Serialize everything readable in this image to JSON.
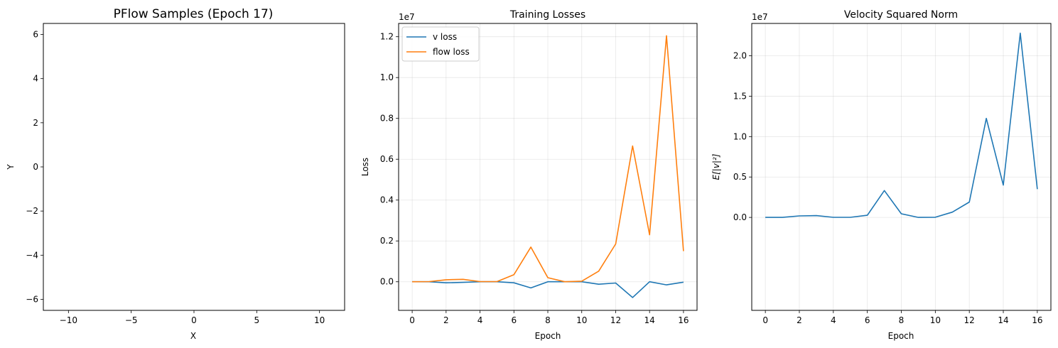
{
  "chart_data": [
    {
      "type": "scatter",
      "title": "PFlow Samples (Epoch 17)",
      "xlabel": "X",
      "ylabel": "Y",
      "xlim": [
        -12,
        12
      ],
      "ylim": [
        -6.5,
        6.5
      ],
      "xticks": [
        -10,
        -5,
        0,
        5,
        10
      ],
      "xtick_labels": [
        "−10",
        "−5",
        "0",
        "5",
        "10"
      ],
      "yticks": [
        -6,
        -4,
        -2,
        0,
        2,
        4,
        6
      ],
      "ytick_labels": [
        "−6",
        "−4",
        "−2",
        "0",
        "2",
        "4",
        "6"
      ],
      "grid": false,
      "series": []
    },
    {
      "type": "line",
      "title": "Training Losses",
      "xlabel": "Epoch",
      "ylabel": "Loss",
      "offset_label": "1e7",
      "xlim": [
        -0.8,
        16.8
      ],
      "ylim": [
        -0.14,
        1.265
      ],
      "xticks": [
        0,
        2,
        4,
        6,
        8,
        10,
        12,
        14,
        16
      ],
      "xtick_labels": [
        "0",
        "2",
        "4",
        "6",
        "8",
        "10",
        "12",
        "14",
        "16"
      ],
      "yticks": [
        0.0,
        0.2,
        0.4,
        0.6,
        0.8,
        1.0,
        1.2
      ],
      "ytick_labels": [
        "0.0",
        "0.2",
        "0.4",
        "0.6",
        "0.8",
        "1.0",
        "1.2"
      ],
      "grid": true,
      "legend": "top-left",
      "x": [
        0,
        1,
        2,
        3,
        4,
        5,
        6,
        7,
        8,
        9,
        10,
        11,
        12,
        13,
        14,
        15,
        16
      ],
      "series": [
        {
          "name": "v loss",
          "color": "#1f77b4",
          "values": [
            0.0,
            0.0,
            -0.005,
            -0.003,
            0.0,
            0.0,
            -0.005,
            -0.03,
            0.0,
            0.0,
            0.0,
            -0.012,
            -0.006,
            -0.077,
            0.0,
            -0.015,
            -0.002
          ]
        },
        {
          "name": "flow loss",
          "color": "#ff7f0e",
          "values": [
            0.0,
            0.001,
            0.01,
            0.012,
            0.001,
            0.001,
            0.035,
            0.17,
            0.02,
            0.0,
            0.003,
            0.052,
            0.185,
            0.665,
            0.23,
            1.205,
            0.15
          ]
        }
      ]
    },
    {
      "type": "line",
      "title": "Velocity Squared Norm",
      "xlabel": "Epoch",
      "ylabel": "E[|v|²]",
      "offset_label": "1e7",
      "xlim": [
        -0.8,
        16.8
      ],
      "ylim": [
        -1.15,
        2.4
      ],
      "xticks": [
        0,
        2,
        4,
        6,
        8,
        10,
        12,
        14,
        16
      ],
      "xtick_labels": [
        "0",
        "2",
        "4",
        "6",
        "8",
        "10",
        "12",
        "14",
        "16"
      ],
      "yticks": [
        0.0,
        0.5,
        1.0,
        1.5,
        2.0
      ],
      "ytick_labels": [
        "0.0",
        "0.5",
        "1.0",
        "1.5",
        "2.0"
      ],
      "grid": true,
      "x": [
        0,
        1,
        2,
        3,
        4,
        5,
        6,
        7,
        8,
        9,
        10,
        11,
        12,
        13,
        14,
        15,
        16
      ],
      "series": [
        {
          "color": "#1f77b4",
          "values": [
            0.0,
            0.0,
            0.019,
            0.022,
            0.001,
            0.001,
            0.027,
            0.332,
            0.045,
            0.0,
            0.002,
            0.065,
            0.19,
            1.225,
            0.4,
            2.28,
            0.35
          ]
        }
      ]
    }
  ]
}
